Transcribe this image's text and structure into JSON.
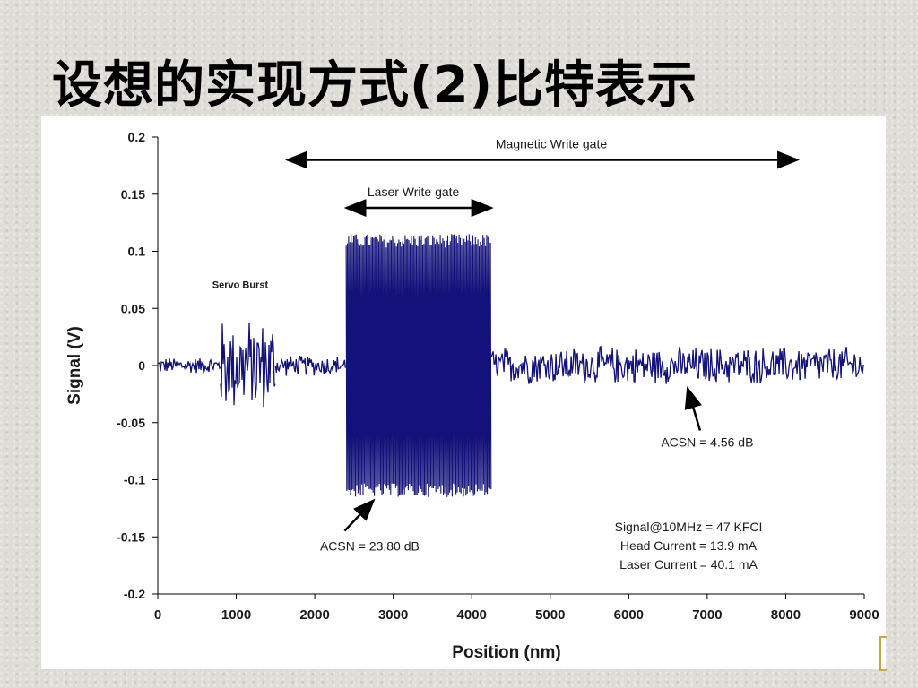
{
  "slide": {
    "title": "设想的实现方式(2)比特表示"
  },
  "chart_data": {
    "type": "line",
    "xlabel": "Position (nm)",
    "ylabel": "Signal (V)",
    "xlim": [
      0,
      9000
    ],
    "ylim": [
      -0.2,
      0.2
    ],
    "x_ticks": [
      "0",
      "1000",
      "2000",
      "3000",
      "4000",
      "5000",
      "6000",
      "7000",
      "8000",
      "9000"
    ],
    "y_ticks": [
      "0.2",
      "0.15",
      "0.1",
      "0.05",
      "0",
      "-0.05",
      "-0.1",
      "-0.15",
      "-0.2"
    ],
    "grid": false,
    "series_color": "#12127a",
    "segments": [
      {
        "label": "",
        "x_start": 0,
        "x_end": 800,
        "amplitude": 0.008
      },
      {
        "label": "Servo Burst",
        "x_start": 800,
        "x_end": 1500,
        "amplitude": 0.045
      },
      {
        "label": "",
        "x_start": 1500,
        "x_end": 2400,
        "amplitude": 0.01
      },
      {
        "label": "Laser Write gate",
        "x_start": 2400,
        "x_end": 4250,
        "amplitude": 0.12
      },
      {
        "label": "",
        "x_start": 4250,
        "x_end": 9000,
        "amplitude": 0.018
      }
    ],
    "gates": [
      {
        "label": "Magnetic Write gate",
        "x_start": 1650,
        "x_end": 8150,
        "y": 0.18
      },
      {
        "label": "Laser Write gate",
        "x_start": 2400,
        "x_end": 4250,
        "y": 0.138
      }
    ],
    "annotations": {
      "servo_burst": {
        "text": "Servo Burst",
        "x": 1050,
        "y": 0.068
      },
      "acsn_laser": {
        "text": "ACSN = 23.80 dB",
        "x": 2700,
        "y": -0.162,
        "arrow_to_x": 2750,
        "arrow_to_y": -0.118
      },
      "acsn_magnetic": {
        "text": "ACSN = 4.56 dB",
        "x": 7000,
        "y": -0.071,
        "arrow_to_x": 6750,
        "arrow_to_y": -0.02
      }
    },
    "info_box": [
      "Signal@10MHz = 47 KFCI",
      "Head Current = 13.9 mA",
      "Laser Current = 40.1 mA"
    ]
  }
}
